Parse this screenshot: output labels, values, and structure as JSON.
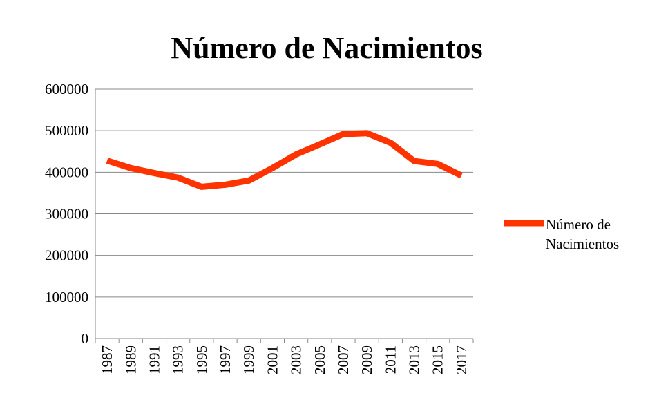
{
  "chart_data": {
    "type": "line",
    "title": "Número de Nacimientos",
    "categories": [
      "1987",
      "1989",
      "1991",
      "1993",
      "1995",
      "1997",
      "1999",
      "2001",
      "2003",
      "2005",
      "2007",
      "2009",
      "2011",
      "2013",
      "2015",
      "2017"
    ],
    "series": [
      {
        "name": "Número de Nacimientos",
        "color": "#ff3300",
        "values": [
          428000,
          410000,
          398000,
          387000,
          365000,
          370000,
          380000,
          410000,
          443000,
          467000,
          492000,
          494000,
          471000,
          427000,
          420000,
          392000
        ]
      }
    ],
    "ylim": [
      0,
      600000
    ],
    "yticks": [
      0,
      100000,
      200000,
      300000,
      400000,
      500000,
      600000
    ],
    "grid": true,
    "legend": "right"
  }
}
